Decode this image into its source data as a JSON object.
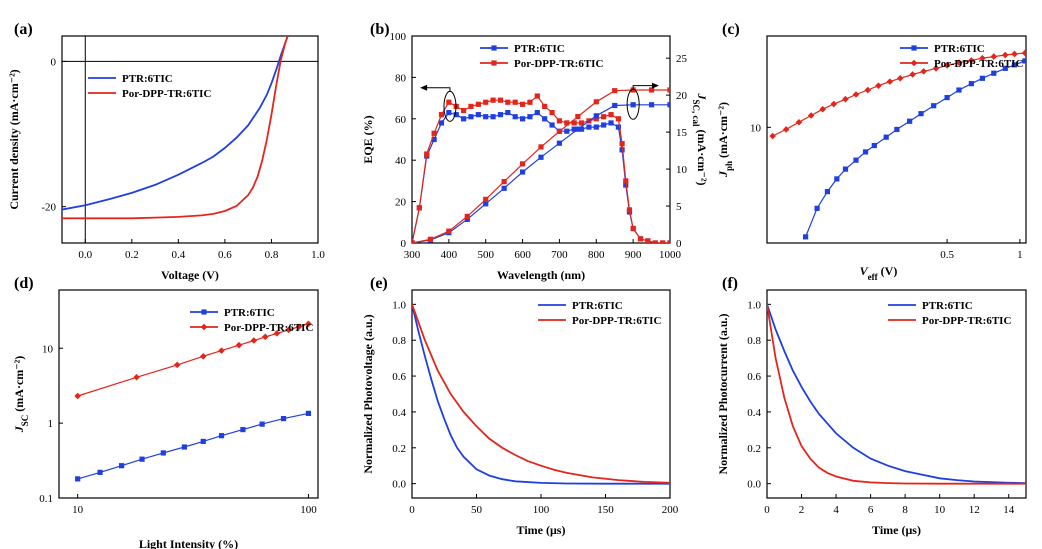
{
  "colors": {
    "blue": "#1f3fe0",
    "red": "#e3261c",
    "axis": "#000000"
  },
  "chart_data": [
    {
      "id": "a",
      "panel_label": "(a)",
      "type": "line",
      "xlabel": "Voltage (V)",
      "ylabel": "Current density (mA·cm⁻²)",
      "xlim": [
        -0.1,
        1.0
      ],
      "ylim": [
        -25,
        3.5
      ],
      "xticks": [
        0.0,
        0.2,
        0.4,
        0.6,
        0.8,
        1.0
      ],
      "xtick_labels": [
        "0.0",
        "0.2",
        "0.4",
        "0.6",
        "0.8",
        "1.0"
      ],
      "yticks": [
        0,
        -20
      ],
      "ytick_labels": [
        "0",
        "-20"
      ],
      "ref_lines": {
        "h": 0,
        "v": 0
      },
      "legend": {
        "position": "upper-left",
        "entries": [
          {
            "label": "PTR:6TIC",
            "color": "blue"
          },
          {
            "label": "Por-DPP-TR:6TIC",
            "color": "red"
          }
        ]
      },
      "series": [
        {
          "name": "PTR:6TIC",
          "color": "blue",
          "marker": "none",
          "x": [
            -0.1,
            0.0,
            0.1,
            0.2,
            0.3,
            0.4,
            0.5,
            0.55,
            0.6,
            0.65,
            0.7,
            0.75,
            0.78,
            0.8,
            0.82,
            0.84,
            0.86,
            0.87
          ],
          "y": [
            -20.4,
            -19.8,
            -19.0,
            -18.1,
            -17.0,
            -15.6,
            -14.0,
            -13.1,
            -11.9,
            -10.5,
            -8.8,
            -6.4,
            -4.6,
            -3.0,
            -1.2,
            0.8,
            2.6,
            3.5
          ]
        },
        {
          "name": "Por-DPP-TR:6TIC",
          "color": "red",
          "marker": "none",
          "x": [
            -0.1,
            0.0,
            0.1,
            0.2,
            0.3,
            0.4,
            0.5,
            0.55,
            0.6,
            0.65,
            0.7,
            0.72,
            0.74,
            0.76,
            0.78,
            0.8,
            0.82,
            0.84,
            0.86,
            0.87
          ],
          "y": [
            -21.6,
            -21.6,
            -21.6,
            -21.6,
            -21.5,
            -21.4,
            -21.2,
            -21.0,
            -20.6,
            -19.9,
            -18.4,
            -17.4,
            -15.9,
            -13.7,
            -10.8,
            -7.3,
            -3.4,
            0.2,
            2.6,
            3.5
          ]
        }
      ]
    },
    {
      "id": "b",
      "panel_label": "(b)",
      "type": "line",
      "xlabel": "Wavelength (nm)",
      "ylabel": "EQE (%)",
      "y2label": "J_SC, cal (mA·cm⁻²)",
      "xlim": [
        300,
        1000
      ],
      "ylim": [
        0,
        100
      ],
      "y2lim": [
        0,
        28
      ],
      "xticks": [
        300,
        400,
        500,
        600,
        700,
        800,
        900,
        1000
      ],
      "xtick_labels": [
        "300",
        "400",
        "500",
        "600",
        "700",
        "800",
        "900",
        "1000"
      ],
      "yticks": [
        0,
        20,
        40,
        60,
        80,
        100
      ],
      "ytick_labels": [
        "0",
        "20",
        "40",
        "60",
        "80",
        "100"
      ],
      "y2ticks": [
        0,
        5,
        10,
        15,
        20,
        25
      ],
      "y2tick_labels": [
        "0",
        "5",
        "10",
        "15",
        "20",
        "25"
      ],
      "legend": {
        "position": "top-center",
        "entries": [
          {
            "label": "PTR:6TIC",
            "color": "blue"
          },
          {
            "label": "Por-DPP-TR:6TIC",
            "color": "red"
          }
        ]
      },
      "series": [
        {
          "name": "PTR:6TIC EQE",
          "color": "blue",
          "marker": "square",
          "axis": "left",
          "x": [
            300,
            320,
            340,
            360,
            380,
            400,
            420,
            440,
            460,
            480,
            500,
            520,
            540,
            560,
            580,
            600,
            620,
            640,
            660,
            680,
            700,
            720,
            740,
            760,
            780,
            800,
            820,
            840,
            860,
            870,
            880,
            890,
            900,
            920,
            940,
            960,
            980,
            1000
          ],
          "y": [
            0,
            17,
            42,
            50,
            58,
            63,
            62,
            60,
            61,
            62,
            61,
            61,
            62,
            63,
            61,
            60,
            61,
            63,
            60,
            57,
            54,
            54,
            55,
            55,
            56,
            56,
            57,
            58,
            56,
            45,
            28,
            15,
            7,
            2,
            1,
            0,
            0,
            0
          ]
        },
        {
          "name": "Por-DPP-TR:6TIC EQE",
          "color": "red",
          "marker": "square",
          "axis": "left",
          "x": [
            300,
            320,
            340,
            360,
            380,
            400,
            420,
            440,
            460,
            480,
            500,
            520,
            540,
            560,
            580,
            600,
            620,
            640,
            660,
            680,
            700,
            720,
            740,
            760,
            780,
            800,
            820,
            840,
            860,
            870,
            880,
            890,
            900,
            920,
            940,
            960,
            980,
            1000
          ],
          "y": [
            0,
            17,
            43,
            53,
            62,
            68,
            66,
            64,
            66,
            67,
            68,
            69,
            69,
            68,
            68,
            67,
            68,
            71,
            66,
            63,
            59,
            58,
            58,
            58,
            59,
            60,
            61,
            62,
            60,
            48,
            30,
            16,
            7,
            2,
            1,
            0,
            0,
            0
          ]
        },
        {
          "name": "PTR:6TIC J_SC,cal",
          "color": "blue",
          "marker": "square",
          "axis": "right",
          "x": [
            300,
            350,
            400,
            450,
            500,
            550,
            600,
            650,
            700,
            750,
            800,
            850,
            900,
            950,
            1000
          ],
          "y": [
            0,
            0.4,
            1.4,
            3.2,
            5.3,
            7.4,
            9.6,
            11.6,
            13.5,
            15.4,
            17.2,
            18.6,
            18.7,
            18.7,
            18.7
          ]
        },
        {
          "name": "Por-DPP-TR:6TIC J_SC,cal",
          "color": "red",
          "marker": "square",
          "axis": "right",
          "x": [
            300,
            350,
            400,
            450,
            500,
            550,
            600,
            650,
            700,
            750,
            800,
            850,
            900,
            950,
            1000
          ],
          "y": [
            0,
            0.5,
            1.6,
            3.6,
            5.9,
            8.3,
            10.7,
            13.0,
            15.1,
            17.1,
            19.1,
            20.6,
            20.7,
            20.7,
            20.7
          ]
        }
      ],
      "annotations": [
        "arrow-left-at-400nm",
        "arrow-right-at-900nm"
      ]
    },
    {
      "id": "c",
      "panel_label": "(c)",
      "type": "scatter",
      "xlabel": "V_eff (V)",
      "ylabel": "J_ph (mA·cm⁻²)",
      "xscale": "log",
      "yscale": "log",
      "xlim": [
        0.09,
        1.06
      ],
      "ylim": [
        3.3,
        24
      ],
      "xticks": [
        0.5,
        1
      ],
      "xtick_labels": [
        "0.5",
        "1"
      ],
      "yticks": [
        10
      ],
      "ytick_labels": [
        "10"
      ],
      "legend": {
        "position": "top-right",
        "entries": [
          {
            "label": "PTR:6TIC",
            "color": "blue"
          },
          {
            "label": "Por-DPP-TR:6TIC",
            "color": "red"
          }
        ]
      },
      "series": [
        {
          "name": "PTR:6TIC",
          "color": "blue",
          "marker": "square",
          "x": [
            0.13,
            0.145,
            0.16,
            0.175,
            0.19,
            0.21,
            0.23,
            0.25,
            0.28,
            0.31,
            0.35,
            0.39,
            0.44,
            0.5,
            0.56,
            0.63,
            0.7,
            0.78,
            0.87,
            0.95,
            1.05
          ],
          "y": [
            3.5,
            4.6,
            5.4,
            6.1,
            6.7,
            7.3,
            7.9,
            8.4,
            9.1,
            9.8,
            10.6,
            11.4,
            12.3,
            13.3,
            14.3,
            15.2,
            16.0,
            16.8,
            17.6,
            18.2,
            18.9
          ]
        },
        {
          "name": "Por-DPP-TR:6TIC",
          "color": "red",
          "marker": "diamond",
          "x": [
            0.095,
            0.108,
            0.122,
            0.137,
            0.153,
            0.17,
            0.19,
            0.21,
            0.235,
            0.26,
            0.29,
            0.32,
            0.36,
            0.4,
            0.45,
            0.5,
            0.56,
            0.63,
            0.7,
            0.78,
            0.87,
            0.95,
            1.05
          ],
          "y": [
            9.2,
            9.8,
            10.5,
            11.2,
            11.9,
            12.5,
            13.1,
            13.7,
            14.3,
            14.9,
            15.5,
            16.0,
            16.6,
            17.1,
            17.6,
            18.1,
            18.6,
            19.0,
            19.4,
            19.7,
            20.0,
            20.2,
            20.4
          ]
        }
      ]
    },
    {
      "id": "d",
      "panel_label": "(d)",
      "type": "scatter",
      "xlabel": "Light Intensity (%)",
      "ylabel": "J_SC (mA·cm⁻²)",
      "xscale": "log",
      "yscale": "log",
      "xlim": [
        8.3,
        110
      ],
      "ylim": [
        0.1,
        60
      ],
      "xticks": [
        10,
        100
      ],
      "xtick_labels": [
        "10",
        "100"
      ],
      "yticks": [
        0.1,
        1,
        10
      ],
      "ytick_labels": [
        "0.1",
        "1",
        "10"
      ],
      "legend": {
        "position": "top-right",
        "entries": [
          {
            "label": "PTR:6TIC",
            "color": "blue"
          },
          {
            "label": "Por-DPP-TR:6TIC",
            "color": "red"
          }
        ]
      },
      "series": [
        {
          "name": "PTR:6TIC",
          "color": "blue",
          "marker": "square",
          "x": [
            10,
            12.5,
            15.5,
            19,
            23.5,
            29,
            35,
            42,
            52,
            63,
            78,
            100
          ],
          "y": [
            0.18,
            0.22,
            0.27,
            0.33,
            0.4,
            0.48,
            0.57,
            0.68,
            0.82,
            0.97,
            1.15,
            1.35
          ]
        },
        {
          "name": "Por-DPP-TR:6TIC",
          "color": "red",
          "marker": "diamond",
          "x": [
            10,
            18,
            27,
            35,
            42,
            50,
            58,
            65,
            73,
            82,
            91,
            100
          ],
          "y": [
            2.3,
            4.1,
            6.0,
            7.8,
            9.3,
            11.0,
            12.7,
            14.2,
            15.8,
            17.6,
            19.4,
            21.2
          ]
        }
      ]
    },
    {
      "id": "e",
      "panel_label": "(e)",
      "type": "line",
      "xlabel": "Time (μs)",
      "ylabel": "Normalized Photovoltage (a.u.)",
      "xlim": [
        0,
        200
      ],
      "ylim": [
        -0.08,
        1.08
      ],
      "xticks": [
        0,
        50,
        100,
        150,
        200
      ],
      "xtick_labels": [
        "0",
        "50",
        "100",
        "150",
        "200"
      ],
      "yticks": [
        0.0,
        0.2,
        0.4,
        0.6,
        0.8,
        1.0
      ],
      "ytick_labels": [
        "0.0",
        "0.2",
        "0.4",
        "0.6",
        "0.8",
        "1.0"
      ],
      "legend": {
        "position": "top-right",
        "entries": [
          {
            "label": "PTR:6TIC",
            "color": "blue"
          },
          {
            "label": "Por-DPP-TR:6TIC",
            "color": "red"
          }
        ]
      },
      "series": [
        {
          "name": "PTR:6TIC",
          "color": "blue",
          "marker": "none",
          "x": [
            0,
            5,
            10,
            15,
            20,
            25,
            30,
            35,
            40,
            50,
            60,
            70,
            80,
            100,
            120,
            150,
            200
          ],
          "y": [
            1.0,
            0.85,
            0.71,
            0.58,
            0.46,
            0.36,
            0.27,
            0.2,
            0.15,
            0.08,
            0.045,
            0.025,
            0.013,
            0.004,
            0.001,
            0.0,
            0.0
          ]
        },
        {
          "name": "Por-DPP-TR:6TIC",
          "color": "red",
          "marker": "none",
          "x": [
            0,
            10,
            20,
            30,
            40,
            50,
            60,
            70,
            80,
            90,
            100,
            110,
            120,
            140,
            160,
            180,
            200
          ],
          "y": [
            1.0,
            0.8,
            0.63,
            0.5,
            0.4,
            0.32,
            0.25,
            0.2,
            0.16,
            0.125,
            0.1,
            0.078,
            0.06,
            0.035,
            0.02,
            0.01,
            0.005
          ]
        }
      ]
    },
    {
      "id": "f",
      "panel_label": "(f)",
      "type": "line",
      "xlabel": "Time (μs)",
      "ylabel": "Normalized Photocurrent (a.u.)",
      "xlim": [
        0,
        15
      ],
      "ylim": [
        -0.08,
        1.08
      ],
      "xticks": [
        0,
        2,
        4,
        6,
        8,
        10,
        12,
        14
      ],
      "xtick_labels": [
        "0",
        "2",
        "4",
        "6",
        "8",
        "10",
        "12",
        "14"
      ],
      "yticks": [
        0.0,
        0.2,
        0.4,
        0.6,
        0.8,
        1.0
      ],
      "ytick_labels": [
        "0.0",
        "0.2",
        "0.4",
        "0.6",
        "0.8",
        "1.0"
      ],
      "legend": {
        "position": "top-right",
        "entries": [
          {
            "label": "PTR:6TIC",
            "color": "blue"
          },
          {
            "label": "Por-DPP-TR:6TIC",
            "color": "red"
          }
        ]
      },
      "series": [
        {
          "name": "PTR:6TIC",
          "color": "blue",
          "marker": "none",
          "x": [
            0,
            0.5,
            1,
            1.5,
            2,
            2.5,
            3,
            4,
            5,
            6,
            7,
            8,
            9,
            10,
            11,
            12,
            13,
            14,
            15
          ],
          "y": [
            1.0,
            0.86,
            0.74,
            0.63,
            0.54,
            0.46,
            0.39,
            0.28,
            0.2,
            0.14,
            0.1,
            0.07,
            0.05,
            0.03,
            0.02,
            0.012,
            0.008,
            0.005,
            0.003
          ]
        },
        {
          "name": "Por-DPP-TR:6TIC",
          "color": "red",
          "marker": "none",
          "x": [
            0,
            0.5,
            1,
            1.5,
            2,
            2.5,
            3,
            3.5,
            4,
            5,
            6,
            7,
            8,
            10,
            12,
            15
          ],
          "y": [
            1.0,
            0.7,
            0.48,
            0.32,
            0.21,
            0.14,
            0.09,
            0.06,
            0.04,
            0.016,
            0.007,
            0.003,
            0.001,
            0.0,
            0.0,
            0.0
          ]
        }
      ]
    }
  ]
}
